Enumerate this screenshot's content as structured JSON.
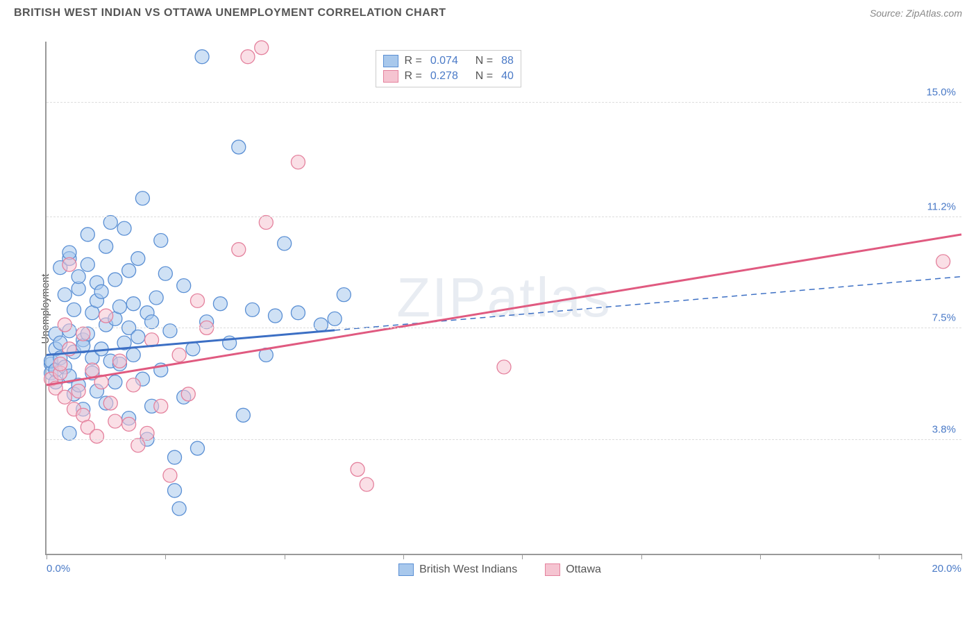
{
  "header": {
    "title": "BRITISH WEST INDIAN VS OTTAWA UNEMPLOYMENT CORRELATION CHART",
    "source_prefix": "Source: ",
    "source": "ZipAtlas.com"
  },
  "watermark": "ZIPatlas",
  "chart": {
    "type": "scatter",
    "xlim": [
      0,
      20
    ],
    "ylim": [
      0,
      17
    ],
    "ylabel": "Unemployment",
    "x_min_label": "0.0%",
    "x_max_label": "20.0%",
    "y_gridlines": [
      {
        "value": 3.8,
        "label": "3.8%"
      },
      {
        "value": 7.5,
        "label": "7.5%"
      },
      {
        "value": 11.2,
        "label": "11.2%"
      },
      {
        "value": 15.0,
        "label": "15.0%"
      }
    ],
    "x_ticks": [
      0,
      2.6,
      5.2,
      7.8,
      10.4,
      13.0,
      15.6,
      18.2,
      20.0
    ],
    "background_color": "#ffffff",
    "grid_color": "#dddddd",
    "axis_color": "#999999",
    "tick_label_color": "#4a7ac7",
    "marker_radius": 10,
    "marker_opacity": 0.55,
    "series": [
      {
        "id": "bwi",
        "name": "British West Indians",
        "fill": "#a8c8ec",
        "stroke": "#5a8fd4",
        "R_label": "R =",
        "R": "0.074",
        "N_label": "N =",
        "N": "88",
        "trend": {
          "x1": 0,
          "y1": 6.6,
          "x2": 20,
          "y2": 9.2,
          "color": "#3c6fc4",
          "width": 3,
          "solid_until_x": 6.3
        },
        "points": [
          [
            0.1,
            6.3
          ],
          [
            0.1,
            6.0
          ],
          [
            0.1,
            6.4
          ],
          [
            0.2,
            6.1
          ],
          [
            0.2,
            6.8
          ],
          [
            0.2,
            7.3
          ],
          [
            0.2,
            5.7
          ],
          [
            0.3,
            6.5
          ],
          [
            0.3,
            9.5
          ],
          [
            0.3,
            7.0
          ],
          [
            0.4,
            6.2
          ],
          [
            0.4,
            8.6
          ],
          [
            0.5,
            7.4
          ],
          [
            0.5,
            9.8
          ],
          [
            0.5,
            10.0
          ],
          [
            0.5,
            5.9
          ],
          [
            0.5,
            4.0
          ],
          [
            0.6,
            8.1
          ],
          [
            0.6,
            5.3
          ],
          [
            0.6,
            6.7
          ],
          [
            0.7,
            8.8
          ],
          [
            0.7,
            9.2
          ],
          [
            0.7,
            5.6
          ],
          [
            0.8,
            7.1
          ],
          [
            0.8,
            6.9
          ],
          [
            0.8,
            4.8
          ],
          [
            0.9,
            9.6
          ],
          [
            0.9,
            10.6
          ],
          [
            0.9,
            7.3
          ],
          [
            1.0,
            8.0
          ],
          [
            1.0,
            6.0
          ],
          [
            1.0,
            6.5
          ],
          [
            1.1,
            8.4
          ],
          [
            1.1,
            5.4
          ],
          [
            1.1,
            9.0
          ],
          [
            1.2,
            6.8
          ],
          [
            1.2,
            8.7
          ],
          [
            1.3,
            7.6
          ],
          [
            1.3,
            5.0
          ],
          [
            1.3,
            10.2
          ],
          [
            1.4,
            11.0
          ],
          [
            1.4,
            6.4
          ],
          [
            1.5,
            9.1
          ],
          [
            1.5,
            7.8
          ],
          [
            1.5,
            5.7
          ],
          [
            1.6,
            8.2
          ],
          [
            1.6,
            6.3
          ],
          [
            1.7,
            7.0
          ],
          [
            1.7,
            10.8
          ],
          [
            1.8,
            9.4
          ],
          [
            1.8,
            7.5
          ],
          [
            1.8,
            4.5
          ],
          [
            1.9,
            8.3
          ],
          [
            1.9,
            6.6
          ],
          [
            2.0,
            9.8
          ],
          [
            2.0,
            7.2
          ],
          [
            2.1,
            5.8
          ],
          [
            2.1,
            11.8
          ],
          [
            2.2,
            8.0
          ],
          [
            2.2,
            3.8
          ],
          [
            2.3,
            7.7
          ],
          [
            2.3,
            4.9
          ],
          [
            2.4,
            8.5
          ],
          [
            2.5,
            6.1
          ],
          [
            2.5,
            10.4
          ],
          [
            2.6,
            9.3
          ],
          [
            2.7,
            7.4
          ],
          [
            2.8,
            2.1
          ],
          [
            2.8,
            3.2
          ],
          [
            2.9,
            1.5
          ],
          [
            3.0,
            5.2
          ],
          [
            3.0,
            8.9
          ],
          [
            3.2,
            6.8
          ],
          [
            3.3,
            3.5
          ],
          [
            3.4,
            16.5
          ],
          [
            3.5,
            7.7
          ],
          [
            3.8,
            8.3
          ],
          [
            4.0,
            7.0
          ],
          [
            4.2,
            13.5
          ],
          [
            4.3,
            4.6
          ],
          [
            4.5,
            8.1
          ],
          [
            4.8,
            6.6
          ],
          [
            5.0,
            7.9
          ],
          [
            5.2,
            10.3
          ],
          [
            5.5,
            8.0
          ],
          [
            6.0,
            7.6
          ],
          [
            6.3,
            7.8
          ],
          [
            6.5,
            8.6
          ]
        ]
      },
      {
        "id": "ottawa",
        "name": "Ottawa",
        "fill": "#f5c4d1",
        "stroke": "#e4819d",
        "R_label": "R =",
        "R": "0.278",
        "N_label": "N =",
        "N": "40",
        "trend": {
          "x1": 0,
          "y1": 5.6,
          "x2": 20,
          "y2": 10.6,
          "color": "#e05a80",
          "width": 3,
          "solid_until_x": 20
        },
        "points": [
          [
            0.1,
            5.8
          ],
          [
            0.2,
            5.5
          ],
          [
            0.3,
            6.0
          ],
          [
            0.3,
            6.3
          ],
          [
            0.4,
            5.2
          ],
          [
            0.4,
            7.6
          ],
          [
            0.5,
            9.6
          ],
          [
            0.5,
            6.8
          ],
          [
            0.6,
            4.8
          ],
          [
            0.7,
            5.4
          ],
          [
            0.8,
            4.6
          ],
          [
            0.8,
            7.3
          ],
          [
            0.9,
            4.2
          ],
          [
            1.0,
            6.1
          ],
          [
            1.1,
            3.9
          ],
          [
            1.2,
            5.7
          ],
          [
            1.3,
            7.9
          ],
          [
            1.4,
            5.0
          ],
          [
            1.5,
            4.4
          ],
          [
            1.6,
            6.4
          ],
          [
            1.8,
            4.3
          ],
          [
            1.9,
            5.6
          ],
          [
            2.0,
            3.6
          ],
          [
            2.2,
            4.0
          ],
          [
            2.3,
            7.1
          ],
          [
            2.5,
            4.9
          ],
          [
            2.7,
            2.6
          ],
          [
            2.9,
            6.6
          ],
          [
            3.1,
            5.3
          ],
          [
            3.3,
            8.4
          ],
          [
            3.5,
            7.5
          ],
          [
            4.2,
            10.1
          ],
          [
            4.4,
            16.5
          ],
          [
            4.7,
            16.8
          ],
          [
            4.8,
            11.0
          ],
          [
            5.5,
            13.0
          ],
          [
            6.8,
            2.8
          ],
          [
            7.0,
            2.3
          ],
          [
            10.0,
            6.2
          ],
          [
            19.6,
            9.7
          ]
        ]
      }
    ]
  },
  "legend_bottom": [
    {
      "swatch_fill": "#a8c8ec",
      "swatch_stroke": "#5a8fd4",
      "label": "British West Indians"
    },
    {
      "swatch_fill": "#f5c4d1",
      "swatch_stroke": "#e4819d",
      "label": "Ottawa"
    }
  ]
}
